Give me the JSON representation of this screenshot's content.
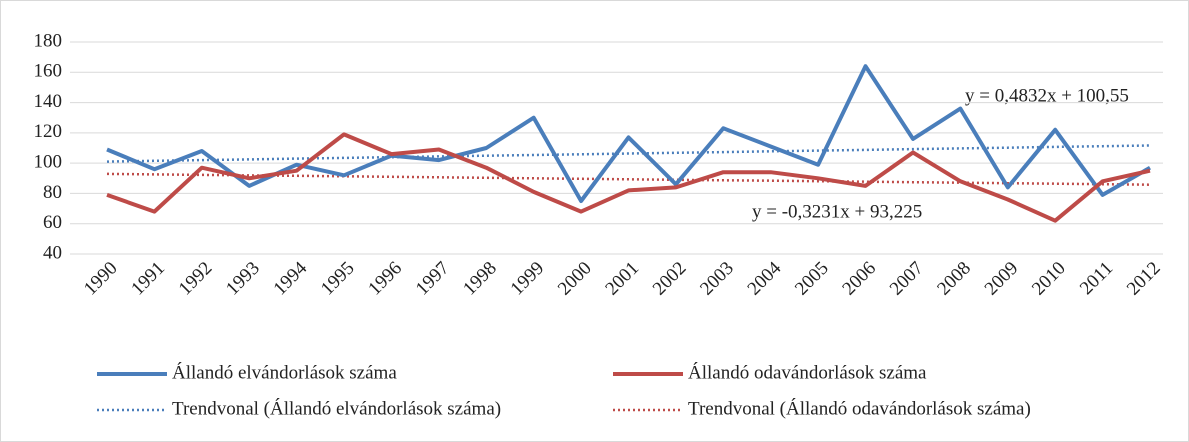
{
  "chart_data": {
    "type": "line",
    "categories": [
      "1990",
      "1991",
      "1992",
      "1993",
      "1994",
      "1995",
      "1996",
      "1997",
      "1998",
      "1999",
      "2000",
      "2001",
      "2002",
      "2003",
      "2004",
      "2005",
      "2006",
      "2007",
      "2008",
      "2009",
      "2010",
      "2011",
      "2012"
    ],
    "series": [
      {
        "name": "Állandó elvándorlások száma",
        "color": "#4a7ebb",
        "dashed": false,
        "values": [
          109,
          96,
          108,
          85,
          99,
          92,
          105,
          102,
          110,
          130,
          75,
          117,
          86,
          123,
          111,
          99,
          164,
          116,
          136,
          84,
          122,
          79,
          97
        ]
      },
      {
        "name": "Állandó odavándorlások száma",
        "color": "#be4b48",
        "dashed": false,
        "values": [
          79,
          68,
          97,
          90,
          95,
          119,
          106,
          109,
          97,
          81,
          68,
          82,
          84,
          94,
          94,
          90,
          85,
          107,
          88,
          76,
          62,
          88,
          95
        ]
      },
      {
        "name": "Trendvonal (Állandó elvándorlások száma)",
        "color": "#4a7ebb",
        "dashed": true,
        "values": [
          101.03,
          101.52,
          102.0,
          102.48,
          102.97,
          103.45,
          103.93,
          104.42,
          104.9,
          105.38,
          105.87,
          106.35,
          106.83,
          107.31,
          107.8,
          108.28,
          108.76,
          109.25,
          109.73,
          110.21,
          110.7,
          111.18,
          111.66
        ]
      },
      {
        "name": "Trendvonal (Állandó odavándorlások száma)",
        "color": "#be4b48",
        "dashed": true,
        "values": [
          92.9,
          92.58,
          92.26,
          91.93,
          91.61,
          91.29,
          90.96,
          90.64,
          90.32,
          89.99,
          89.67,
          89.35,
          89.02,
          88.7,
          88.38,
          88.06,
          87.73,
          87.41,
          87.09,
          86.76,
          86.44,
          86.12,
          85.79
        ]
      }
    ],
    "annotations": [
      "y = 0,4832x + 100,55",
      "y = -0,3231x + 93,225"
    ],
    "ylim": [
      40,
      180
    ],
    "yticks": [
      40,
      60,
      80,
      100,
      120,
      140,
      160,
      180
    ],
    "grid": true,
    "legend": "bottom"
  }
}
